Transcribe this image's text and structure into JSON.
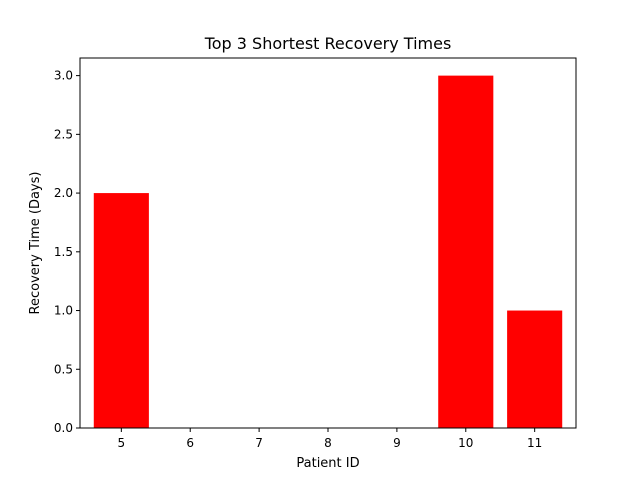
{
  "chart_data": {
    "type": "bar",
    "title": "Top 3 Shortest Recovery Times",
    "xlabel": "Patient ID",
    "ylabel": "Recovery Time (Days)",
    "x": [
      5,
      10,
      11
    ],
    "values": [
      2.0,
      3.0,
      1.0
    ],
    "xlim": [
      4.4,
      11.6
    ],
    "ylim": [
      0,
      3.15
    ],
    "x_ticks": [
      5,
      6,
      7,
      8,
      9,
      10,
      11
    ],
    "y_ticks": [
      "0.0",
      "0.5",
      "1.0",
      "1.5",
      "2.0",
      "2.5",
      "3.0"
    ],
    "bar_width": 0.8,
    "bar_color": "#ff0000",
    "grid": false
  }
}
